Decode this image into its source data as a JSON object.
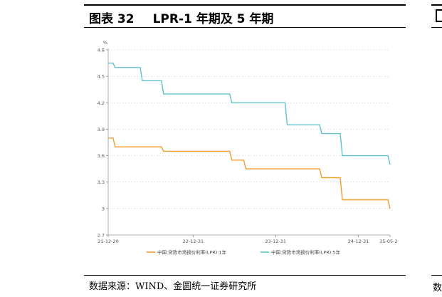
{
  "figure": {
    "number": "图表 32",
    "title": "LPR-1 年期及 5 年期",
    "source": "数据来源：WIND、金圆统一证券研究所",
    "side_fragment": "数"
  },
  "chart_data": {
    "type": "line",
    "unit_label": "%",
    "x_tick_labels": [
      "21-12-20",
      "22-12-31",
      "23-12-31",
      "24-12-31",
      "25-05-20"
    ],
    "y_tick_labels": [
      "2.7",
      "3",
      "3.3",
      "3.6",
      "3.9",
      "4.2",
      "4.5",
      "4.8"
    ],
    "ylim": [
      2.7,
      4.8
    ],
    "grid": true,
    "legend_position": "bottom",
    "series": [
      {
        "name": "中国:贷款市场报价利率(LPR):1年",
        "color": "#f39c2e",
        "points": [
          [
            "2021-12-20",
            3.8
          ],
          [
            "2022-01-20",
            3.7
          ],
          [
            "2022-08-22",
            3.65
          ],
          [
            "2023-06-20",
            3.55
          ],
          [
            "2023-08-21",
            3.45
          ],
          [
            "2024-07-22",
            3.35
          ],
          [
            "2024-10-21",
            3.1
          ],
          [
            "2025-05-20",
            3.0
          ]
        ]
      },
      {
        "name": "中国:贷款市场报价利率(LPR):5年",
        "color": "#5ec3cc",
        "points": [
          [
            "2021-12-20",
            4.65
          ],
          [
            "2022-01-20",
            4.6
          ],
          [
            "2022-05-20",
            4.45
          ],
          [
            "2022-08-22",
            4.3
          ],
          [
            "2023-06-20",
            4.2
          ],
          [
            "2024-02-20",
            3.95
          ],
          [
            "2024-07-22",
            3.85
          ],
          [
            "2024-10-21",
            3.6
          ],
          [
            "2025-05-20",
            3.5
          ]
        ]
      }
    ]
  }
}
